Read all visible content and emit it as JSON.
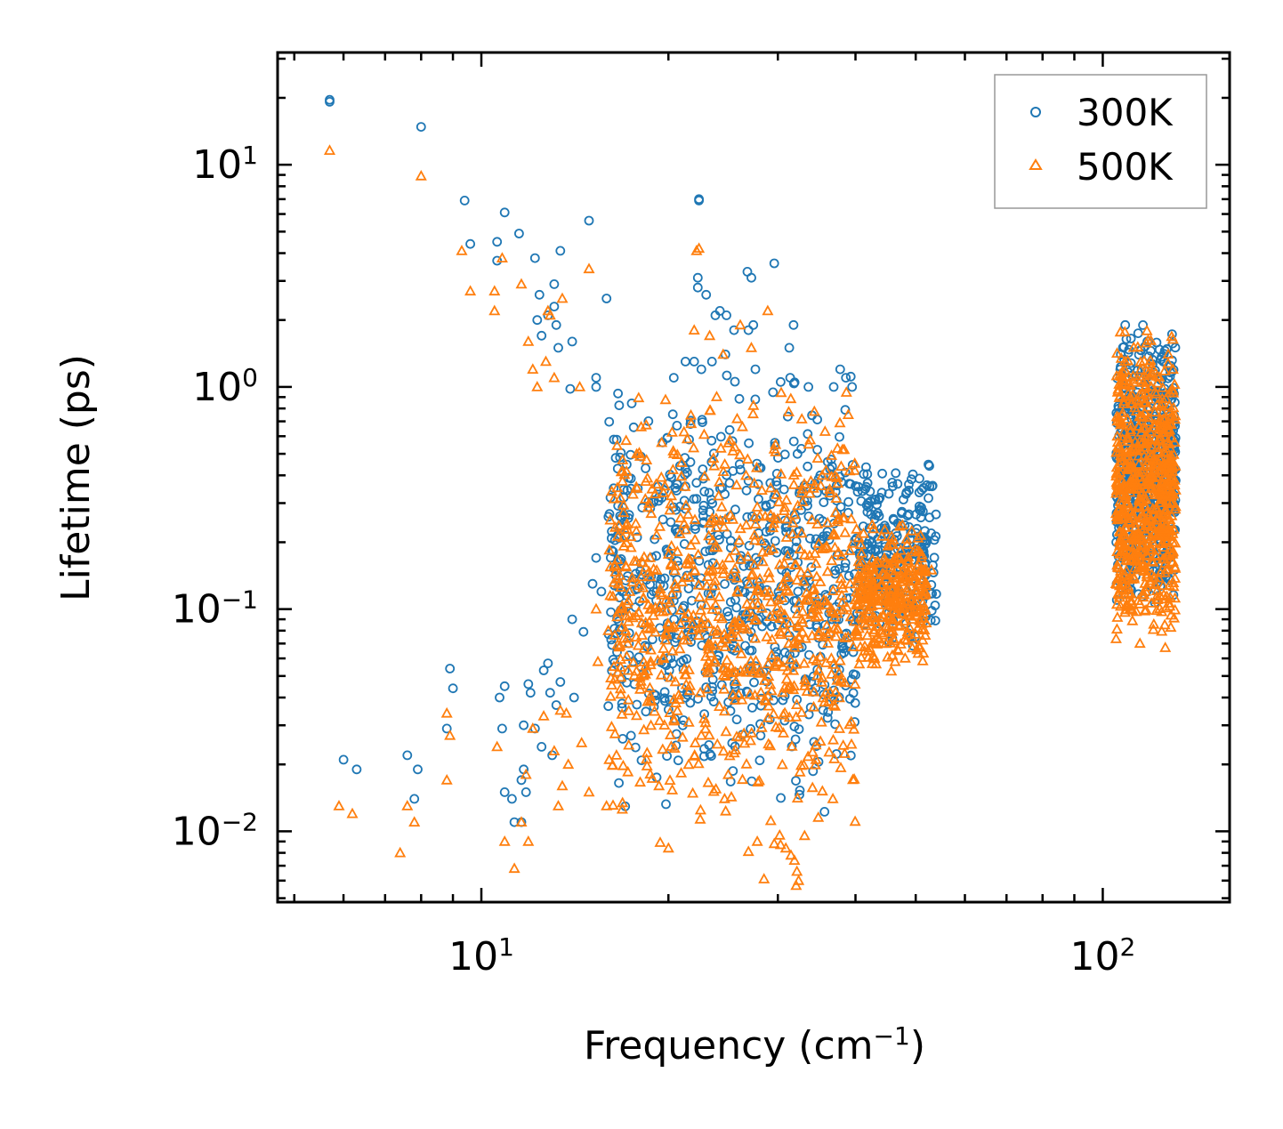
{
  "chart_data": {
    "type": "scatter",
    "xlabel": "Frequency (cm",
    "xlabel_sup": "−1",
    "xlabel_tail": ")",
    "ylabel": "Lifetime (ps)",
    "xscale": "log",
    "yscale": "log",
    "xlim": [
      4.7,
      160
    ],
    "ylim": [
      0.0048,
      32
    ],
    "x_ticks": [
      {
        "value": 10,
        "base": "10",
        "exp": "1"
      },
      {
        "value": 100,
        "base": "10",
        "exp": "2"
      }
    ],
    "y_ticks": [
      {
        "value": 10,
        "base": "10",
        "exp": "1"
      },
      {
        "value": 1,
        "base": "10",
        "exp": "0"
      },
      {
        "value": 0.1,
        "base": "10",
        "exp": "−1"
      },
      {
        "value": 0.01,
        "base": "10",
        "exp": "−2"
      }
    ],
    "legend_position": "top-right",
    "series": [
      {
        "name": "300K",
        "marker": "circle",
        "color": "#1f77b4",
        "points": [
          [
            5.7,
            19.6
          ],
          [
            5.7,
            19.2
          ],
          [
            8.0,
            14.8
          ],
          [
            9.4,
            6.9
          ],
          [
            10.9,
            6.1
          ],
          [
            10.6,
            4.5
          ],
          [
            10.6,
            3.7
          ],
          [
            11.5,
            4.9
          ],
          [
            9.6,
            4.4
          ],
          [
            14.9,
            5.6
          ],
          [
            12.2,
            3.8
          ],
          [
            13.4,
            4.1
          ],
          [
            12.4,
            2.6
          ],
          [
            13.1,
            2.9
          ],
          [
            15.9,
            2.5
          ],
          [
            13.1,
            2.3
          ],
          [
            13.2,
            1.9
          ],
          [
            12.8,
            2.1
          ],
          [
            12.3,
            2.0
          ],
          [
            12.5,
            1.7
          ],
          [
            14.0,
            1.6
          ],
          [
            13.3,
            1.5
          ],
          [
            15.3,
            1.1
          ],
          [
            13.9,
            0.98
          ],
          [
            15.3,
            1.0
          ],
          [
            22.4,
            6.9
          ],
          [
            22.4,
            7.0
          ],
          [
            22.3,
            3.1
          ],
          [
            22.3,
            2.8
          ],
          [
            23.0,
            2.6
          ],
          [
            24.2,
            2.2
          ],
          [
            23.8,
            2.1
          ],
          [
            26.8,
            3.3
          ],
          [
            27.2,
            3.1
          ],
          [
            29.6,
            3.6
          ],
          [
            31.8,
            1.9
          ],
          [
            24.8,
            2.1
          ],
          [
            25.5,
            1.8
          ],
          [
            22.0,
            1.3
          ],
          [
            21.3,
            1.3
          ],
          [
            22.6,
            1.2
          ],
          [
            20.4,
            1.1
          ],
          [
            23.5,
            1.3
          ],
          [
            24.7,
            1.4
          ],
          [
            27.6,
            1.2
          ],
          [
            31.3,
            1.5
          ],
          [
            27.4,
            1.9
          ],
          [
            26.9,
            1.8
          ],
          [
            36.9,
            1.0
          ],
          [
            33.6,
            1.0
          ],
          [
            37.8,
            1.2
          ],
          [
            39.5,
            1.0
          ],
          [
            38.6,
            1.1
          ],
          [
            31.4,
            1.1
          ],
          [
            6.0,
            0.021
          ],
          [
            6.3,
            0.019
          ],
          [
            7.6,
            0.022
          ],
          [
            7.9,
            0.019
          ],
          [
            7.8,
            0.014
          ],
          [
            8.9,
            0.054
          ],
          [
            9.0,
            0.044
          ],
          [
            8.8,
            0.029
          ],
          [
            10.7,
            0.04
          ],
          [
            10.9,
            0.045
          ],
          [
            11.3,
            0.011
          ],
          [
            11.8,
            0.015
          ],
          [
            11.6,
            0.017
          ],
          [
            11.2,
            0.014
          ],
          [
            11.7,
            0.019
          ],
          [
            11.9,
            0.046
          ],
          [
            12.0,
            0.042
          ],
          [
            12.6,
            0.053
          ],
          [
            12.8,
            0.057
          ],
          [
            12.9,
            0.042
          ],
          [
            13.4,
            0.047
          ],
          [
            13.2,
            0.037
          ],
          [
            14.0,
            0.09
          ],
          [
            14.1,
            0.04
          ],
          [
            15.3,
            0.17
          ],
          [
            15.1,
            0.13
          ],
          [
            15.6,
            0.12
          ],
          [
            14.6,
            0.079
          ],
          [
            12.2,
            0.029
          ],
          [
            11.7,
            0.03
          ],
          [
            12.5,
            0.024
          ],
          [
            13.0,
            0.022
          ],
          [
            10.8,
            0.029
          ],
          [
            10.9,
            0.015
          ],
          [
            11.6,
            0.011
          ]
        ]
      },
      {
        "name": "500K",
        "marker": "triangle",
        "color": "#ff7f0e",
        "points": [
          [
            5.7,
            11.6
          ],
          [
            8.0,
            8.9
          ],
          [
            9.3,
            4.1
          ],
          [
            10.8,
            3.8
          ],
          [
            9.6,
            2.7
          ],
          [
            10.5,
            2.7
          ],
          [
            10.5,
            2.2
          ],
          [
            11.6,
            2.9
          ],
          [
            14.9,
            3.4
          ],
          [
            13.5,
            2.5
          ],
          [
            12.9,
            2.1
          ],
          [
            12.8,
            2.2
          ],
          [
            11.9,
            1.6
          ],
          [
            12.1,
            1.2
          ],
          [
            12.7,
            1.3
          ],
          [
            12.3,
            1.0
          ],
          [
            13.1,
            1.1
          ],
          [
            14.4,
            1.0
          ],
          [
            22.4,
            4.2
          ],
          [
            22.2,
            4.1
          ],
          [
            22.0,
            1.8
          ],
          [
            23.3,
            1.7
          ],
          [
            28.9,
            2.2
          ],
          [
            26.1,
            1.9
          ],
          [
            24.5,
            1.4
          ],
          [
            27.2,
            1.5
          ],
          [
            5.9,
            0.013
          ],
          [
            6.2,
            0.012
          ],
          [
            7.6,
            0.013
          ],
          [
            7.4,
            0.008
          ],
          [
            7.8,
            0.011
          ],
          [
            8.8,
            0.034
          ],
          [
            8.9,
            0.027
          ],
          [
            8.8,
            0.017
          ],
          [
            10.6,
            0.024
          ],
          [
            10.9,
            0.009
          ],
          [
            11.3,
            0.0068
          ],
          [
            11.9,
            0.009
          ],
          [
            11.6,
            0.011
          ],
          [
            11.8,
            0.018
          ],
          [
            12.1,
            0.029
          ],
          [
            12.6,
            0.033
          ],
          [
            13.4,
            0.035
          ],
          [
            13.1,
            0.023
          ],
          [
            13.7,
            0.034
          ],
          [
            14.5,
            0.025
          ],
          [
            15.4,
            0.058
          ],
          [
            15.3,
            0.1
          ],
          [
            16.0,
            0.08
          ],
          [
            17.2,
            0.07
          ],
          [
            14.9,
            0.015
          ],
          [
            13.8,
            0.02
          ],
          [
            13.3,
            0.013
          ],
          [
            13.5,
            0.016
          ],
          [
            15.9,
            0.013
          ],
          [
            16.5,
            0.022
          ],
          [
            28.5,
            0.0061
          ],
          [
            32.4,
            0.006
          ],
          [
            32.2,
            0.0066
          ],
          [
            32.1,
            0.0057
          ],
          [
            26.9,
            0.0081
          ],
          [
            29.6,
            0.0088
          ],
          [
            30.3,
            0.0087
          ],
          [
            20.0,
            0.0084
          ],
          [
            19.4,
            0.0089
          ],
          [
            31.9,
            0.0074
          ],
          [
            27.8,
            0.009
          ],
          [
            31.5,
            0.0078
          ],
          [
            30.9,
            0.0084
          ],
          [
            30.2,
            0.0096
          ],
          [
            53.0,
            0.15
          ],
          [
            50.6,
            0.16
          ],
          [
            49.9,
            0.14
          ],
          [
            51.8,
            0.13
          ]
        ]
      }
    ],
    "clusters": [
      {
        "series": "300K",
        "x_min": 16,
        "x_max": 40,
        "y_log_min": -1.95,
        "y_log_max": 0.1,
        "count": 700,
        "seed": 11
      },
      {
        "series": "500K",
        "x_min": 16,
        "x_max": 40,
        "y_log_min": -2.05,
        "y_log_max": 0.05,
        "count": 820,
        "seed": 23
      },
      {
        "series": "300K",
        "x_min": 40,
        "x_max": 54,
        "y_log_min": -1.2,
        "y_log_max": -0.3,
        "count": 260,
        "seed": 37
      },
      {
        "series": "500K",
        "x_min": 40,
        "x_max": 52,
        "y_log_min": -1.3,
        "y_log_max": -0.6,
        "count": 330,
        "seed": 41
      },
      {
        "series": "300K",
        "x_min": 105,
        "x_max": 131,
        "y_log_min": -1.05,
        "y_log_max": 0.35,
        "count": 620,
        "seed": 53
      },
      {
        "series": "500K",
        "x_min": 105,
        "x_max": 131,
        "y_log_min": -1.2,
        "y_log_max": 0.3,
        "count": 700,
        "seed": 67
      }
    ]
  }
}
